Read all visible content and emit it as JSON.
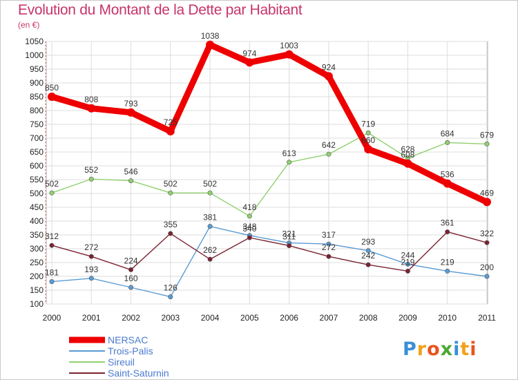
{
  "chart_data": {
    "type": "line",
    "title": "Evolution du Montant de la Dette par Habitant",
    "subtitle": "(en €)",
    "categories": [
      "2000",
      "2001",
      "2002",
      "2003",
      "2004",
      "2005",
      "2006",
      "2007",
      "2008",
      "2009",
      "2010",
      "2011"
    ],
    "ylim": [
      100,
      1050
    ],
    "yticks": [
      100,
      150,
      200,
      250,
      300,
      350,
      400,
      450,
      500,
      550,
      600,
      650,
      700,
      750,
      800,
      850,
      900,
      950,
      1000,
      1050
    ],
    "grid": true,
    "series": [
      {
        "name": "NERSAC",
        "color": "#ee0000",
        "values": [
          850,
          808,
          793,
          725,
          1038,
          974,
          1003,
          924,
          660,
          608,
          536,
          469
        ]
      },
      {
        "name": "Trois-Palis",
        "color": "#5a9bd4",
        "values": [
          181,
          193,
          160,
          126,
          381,
          348,
          321,
          317,
          293,
          244,
          219,
          200
        ]
      },
      {
        "name": "Sireuil",
        "color": "#90d070",
        "values": [
          502,
          552,
          546,
          502,
          502,
          418,
          613,
          642,
          719,
          628,
          684,
          679
        ]
      },
      {
        "name": "Saint-Saturnin",
        "color": "#7a2230",
        "values": [
          312,
          272,
          224,
          355,
          262,
          340,
          311,
          272,
          242,
          219,
          361,
          322
        ]
      }
    ],
    "legend_position": "bottom-left"
  },
  "logo_text": "Proxiti"
}
